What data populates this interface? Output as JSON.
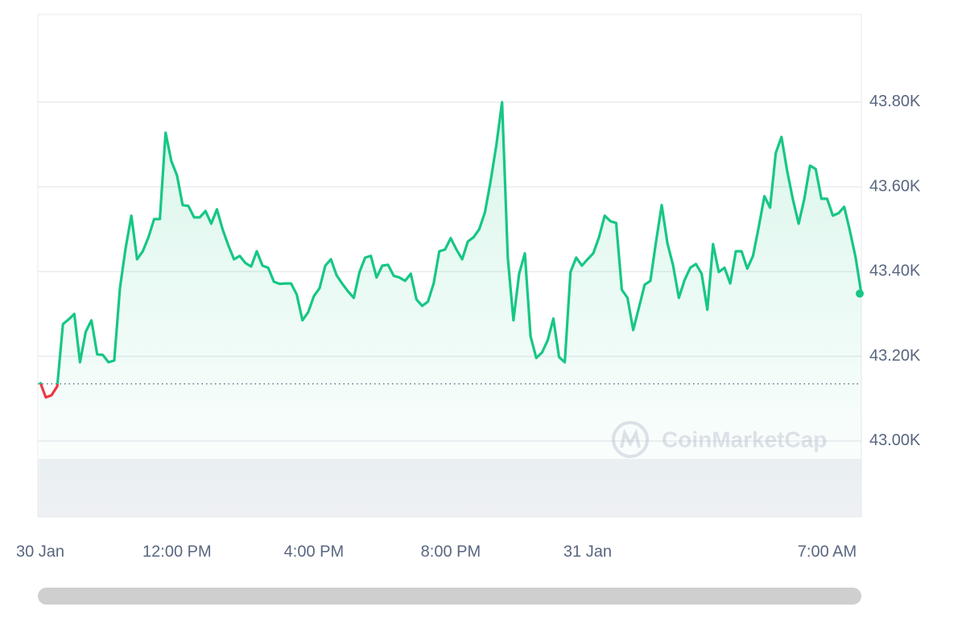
{
  "chart_data": {
    "type": "line",
    "x": [
      480,
      490,
      500,
      510,
      520,
      530,
      540,
      550,
      560,
      570,
      580,
      590,
      600,
      610,
      620,
      630,
      640,
      650,
      660,
      670,
      680,
      690,
      700,
      710,
      720,
      730,
      740,
      750,
      760,
      770,
      780,
      790,
      800,
      810,
      820,
      830,
      840,
      850,
      860,
      870,
      880,
      890,
      900,
      910,
      920,
      930,
      940,
      950,
      960,
      970,
      980,
      990,
      1000,
      1010,
      1020,
      1030,
      1040,
      1050,
      1060,
      1070,
      1080,
      1090,
      1100,
      1110,
      1120,
      1130,
      1140,
      1150,
      1160,
      1170,
      1180,
      1190,
      1200,
      1210,
      1220,
      1230,
      1240,
      1250,
      1260,
      1270,
      1280,
      1290,
      1300,
      1310,
      1320,
      1330,
      1340,
      1350,
      1360,
      1370,
      1380,
      1390,
      1400,
      1410,
      1420,
      1430,
      1440,
      1450,
      1460,
      1470,
      1480,
      1490,
      1500,
      1510,
      1520,
      1530,
      1540,
      1550,
      1560,
      1570,
      1580,
      1590,
      1600,
      1610,
      1620,
      1630,
      1640,
      1650,
      1660,
      1670,
      1680,
      1690,
      1700,
      1710,
      1720,
      1730,
      1740,
      1750,
      1760,
      1770,
      1780,
      1790,
      1800,
      1810,
      1820,
      1830,
      1840,
      1850,
      1860,
      1870,
      1880,
      1890,
      1900,
      1910,
      1920
    ],
    "values": [
      43139,
      43103,
      43108,
      43129,
      43276,
      43287,
      43300,
      43186,
      43258,
      43285,
      43205,
      43203,
      43186,
      43190,
      43361,
      43456,
      43532,
      43429,
      43448,
      43481,
      43524,
      43524,
      43728,
      43661,
      43627,
      43557,
      43555,
      43528,
      43528,
      43543,
      43513,
      43547,
      43500,
      43462,
      43429,
      43437,
      43420,
      43412,
      43448,
      43414,
      43409,
      43376,
      43371,
      43372,
      43372,
      43346,
      43285,
      43304,
      43342,
      43361,
      43414,
      43429,
      43391,
      43371,
      43353,
      43338,
      43399,
      43433,
      43437,
      43386,
      43414,
      43416,
      43390,
      43386,
      43378,
      43395,
      43334,
      43319,
      43329,
      43372,
      43448,
      43452,
      43479,
      43452,
      43429,
      43471,
      43481,
      43500,
      43540,
      43614,
      43699,
      43800,
      43433,
      43285,
      43395,
      43443,
      43247,
      43196,
      43209,
      43238,
      43289,
      43198,
      43186,
      43399,
      43433,
      43414,
      43429,
      43443,
      43481,
      43532,
      43519,
      43515,
      43357,
      43338,
      43262,
      43315,
      43369,
      43378,
      43471,
      43557,
      43467,
      43414,
      43338,
      43380,
      43409,
      43418,
      43395,
      43310,
      43465,
      43399,
      43409,
      43372,
      43448,
      43448,
      43407,
      43437,
      43505,
      43578,
      43551,
      43680,
      43718,
      43637,
      43570,
      43513,
      43572,
      43650,
      43642,
      43572,
      43572,
      43532,
      43538,
      43553,
      43496,
      43433,
      43348
    ],
    "color": "#16c784",
    "color_below": "#ea3943",
    "baseline": 43135,
    "xlim": [
      476,
      1920
    ],
    "xticks": [
      {
        "value": 480,
        "label": "30 Jan"
      },
      {
        "value": 720,
        "label": "12:00 PM"
      },
      {
        "value": 960,
        "label": "4:00 PM"
      },
      {
        "value": 1200,
        "label": "8:00 PM"
      },
      {
        "value": 1440,
        "label": "31 Jan"
      },
      {
        "value": 1860,
        "label": "7:00 AM"
      }
    ],
    "ylim": [
      42821,
      44007
    ],
    "yticks": [
      {
        "value": 43000,
        "label": "43.00K"
      },
      {
        "value": 43200,
        "label": "43.20K"
      },
      {
        "value": 43400,
        "label": "43.40K"
      },
      {
        "value": 43600,
        "label": "43.60K"
      },
      {
        "value": 43800,
        "label": "43.80K"
      }
    ],
    "grid": true,
    "watermark": "CoinMarketCap"
  }
}
